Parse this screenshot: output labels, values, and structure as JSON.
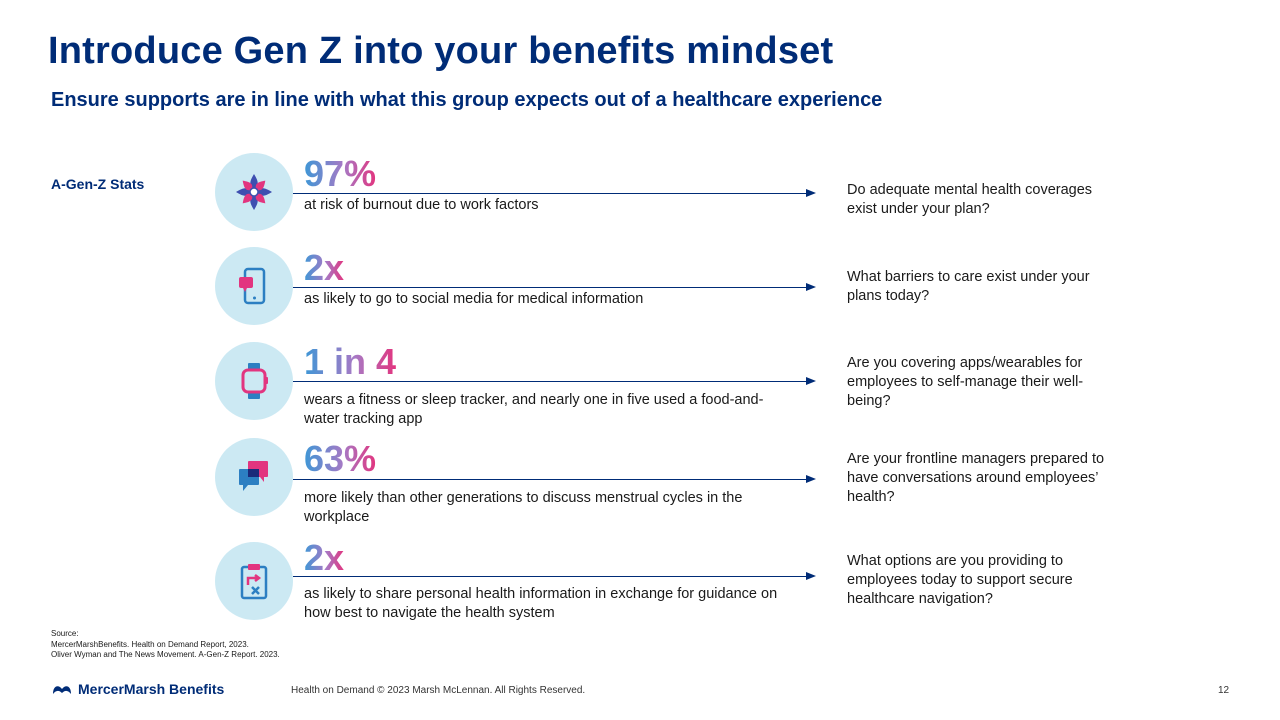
{
  "title": "Introduce Gen Z into your benefits mindset",
  "subtitle": "Ensure supports are in line with what this group expects out of a healthcare experience",
  "side_label": "A-Gen-Z Stats",
  "rows": [
    {
      "icon": "flower-icon",
      "stat": "97%",
      "desc": "at risk of burnout due to work factors",
      "question": "Do adequate mental health coverages exist under your plan?"
    },
    {
      "icon": "smartphone-icon",
      "stat": "2x",
      "desc": "as likely to go to social media for medical information",
      "question": "What barriers to care exist under your plans today?"
    },
    {
      "icon": "smartwatch-icon",
      "stat": "1 in 4",
      "desc": "wears a fitness or sleep tracker, and nearly one in five used a food-and-water tracking app",
      "question": "Are you covering apps/wearables for employees to self-manage their well-being?"
    },
    {
      "icon": "chat-bubbles-icon",
      "stat": "63%",
      "desc": "more likely than other generations to discuss menstrual cycles in the workplace",
      "question": "Are your frontline managers prepared to have conversations around employees’ health?"
    },
    {
      "icon": "clipboard-icon",
      "stat": "2x",
      "desc": "as likely to share personal health information in exchange for guidance on how best to navigate the health system",
      "question": "What options are you providing to employees today to support secure healthcare navigation?"
    }
  ],
  "source": {
    "label": "Source:",
    "lines": [
      "MercerMarshBenefits. Health on Demand Report, 2023.",
      "Oliver Wyman and The News Movement.  A-Gen-Z Report. 2023."
    ]
  },
  "footer": {
    "logo_text": "MercerMarsh Benefits",
    "copyright": "Health on Demand © 2023 Marsh McLennan. All Rights Reserved.",
    "page_number": "12"
  },
  "colors": {
    "navy": "#002c77",
    "icon_bg": "#cce9f3",
    "gradient_start": "#3e97d6",
    "gradient_end": "#e2357f"
  }
}
